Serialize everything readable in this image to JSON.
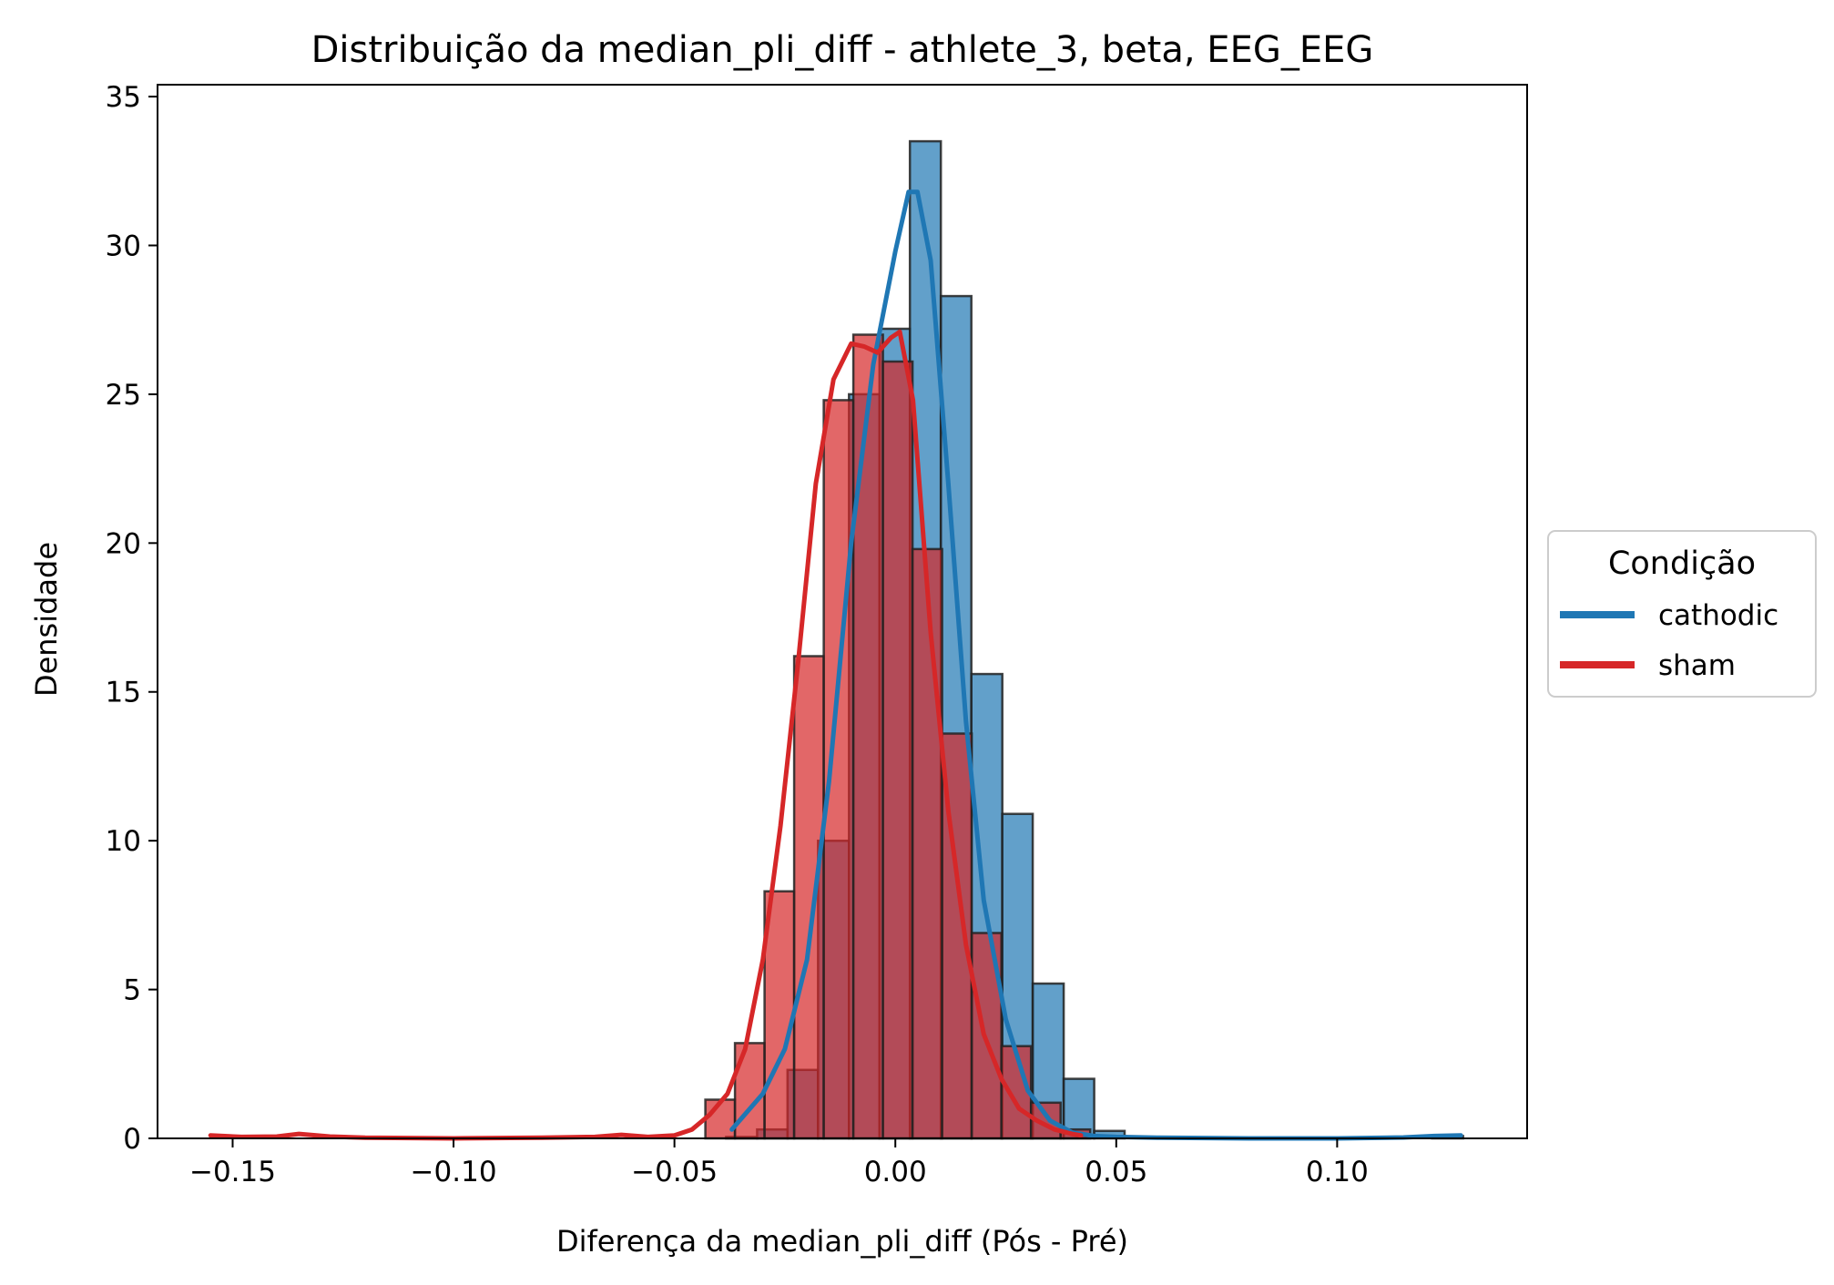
{
  "chart_data": {
    "type": "histogram",
    "title": "Distribuição da median_pli_diff - athlete_3, beta, EEG_EEG",
    "xlabel": "Diferença da median_pli_diff (Pós - Pré)",
    "ylabel": "Densidade",
    "xlim": [
      -0.167,
      0.143
    ],
    "ylim": [
      0,
      35.4
    ],
    "xticks": [
      -0.15,
      -0.1,
      -0.05,
      0.0,
      0.05,
      0.1
    ],
    "xtick_labels": [
      "−0.15",
      "−0.10",
      "−0.05",
      "0.00",
      "0.05",
      "0.10"
    ],
    "yticks": [
      0,
      5,
      10,
      15,
      20,
      25,
      30,
      35
    ],
    "ytick_labels": [
      "0",
      "5",
      "10",
      "15",
      "20",
      "25",
      "30",
      "35"
    ],
    "grid": false,
    "legend": {
      "title": "Condição",
      "position": "center-right, outside plot"
    },
    "series": [
      {
        "name": "cathodic",
        "color": "#1f77b4",
        "hist_bins": [
          {
            "x0": -0.0383,
            "x1": -0.0313,
            "y": 0.05
          },
          {
            "x0": -0.0313,
            "x1": -0.0244,
            "y": 0.3
          },
          {
            "x0": -0.0244,
            "x1": -0.0175,
            "y": 2.3
          },
          {
            "x0": -0.0175,
            "x1": -0.0105,
            "y": 10.0
          },
          {
            "x0": -0.0105,
            "x1": -0.0036,
            "y": 25.0
          },
          {
            "x0": -0.0036,
            "x1": 0.0033,
            "y": 27.2
          },
          {
            "x0": 0.0033,
            "x1": 0.0103,
            "y": 33.5
          },
          {
            "x0": 0.0103,
            "x1": 0.0172,
            "y": 28.3
          },
          {
            "x0": 0.0172,
            "x1": 0.0242,
            "y": 15.6
          },
          {
            "x0": 0.0242,
            "x1": 0.0311,
            "y": 10.9
          },
          {
            "x0": 0.0311,
            "x1": 0.0381,
            "y": 5.2
          },
          {
            "x0": 0.0381,
            "x1": 0.045,
            "y": 2.0
          },
          {
            "x0": 0.045,
            "x1": 0.0519,
            "y": 0.25
          },
          {
            "x0": 0.0519,
            "x1": 0.0589,
            "y": 0.0
          },
          {
            "x0": 0.1215,
            "x1": 0.1285,
            "y": 0.08
          }
        ],
        "kde_x": [
          -0.037,
          -0.03,
          -0.025,
          -0.02,
          -0.015,
          -0.01,
          -0.005,
          0.0,
          0.003,
          0.005,
          0.008,
          0.012,
          0.016,
          0.02,
          0.025,
          0.03,
          0.035,
          0.04,
          0.045,
          0.05,
          0.06,
          0.08,
          0.1,
          0.115,
          0.122,
          0.128
        ],
        "kde_y": [
          0.3,
          1.5,
          3.0,
          6.0,
          12.0,
          20.0,
          26.0,
          29.8,
          31.8,
          31.8,
          29.5,
          22.0,
          14.0,
          8.0,
          4.0,
          1.6,
          0.6,
          0.2,
          0.08,
          0.05,
          0.02,
          0.0,
          0.0,
          0.03,
          0.08,
          0.1
        ]
      },
      {
        "name": "sham",
        "color": "#d62728",
        "hist_bins": [
          {
            "x0": -0.043,
            "x1": -0.0363,
            "y": 1.3
          },
          {
            "x0": -0.0363,
            "x1": -0.0296,
            "y": 3.2
          },
          {
            "x0": -0.0296,
            "x1": -0.0229,
            "y": 8.3
          },
          {
            "x0": -0.0229,
            "x1": -0.0162,
            "y": 16.2
          },
          {
            "x0": -0.0162,
            "x1": -0.0095,
            "y": 24.8
          },
          {
            "x0": -0.0095,
            "x1": -0.0028,
            "y": 27.0
          },
          {
            "x0": -0.0028,
            "x1": 0.0039,
            "y": 26.1
          },
          {
            "x0": 0.0039,
            "x1": 0.0106,
            "y": 19.8
          },
          {
            "x0": 0.0106,
            "x1": 0.0173,
            "y": 13.6
          },
          {
            "x0": 0.0173,
            "x1": 0.024,
            "y": 6.9
          },
          {
            "x0": 0.024,
            "x1": 0.0307,
            "y": 3.1
          },
          {
            "x0": 0.0307,
            "x1": 0.0374,
            "y": 1.2
          },
          {
            "x0": 0.0374,
            "x1": 0.0441,
            "y": 0.3
          }
        ],
        "kde_x": [
          -0.155,
          -0.148,
          -0.14,
          -0.135,
          -0.128,
          -0.12,
          -0.1,
          -0.08,
          -0.068,
          -0.062,
          -0.056,
          -0.05,
          -0.046,
          -0.042,
          -0.038,
          -0.034,
          -0.03,
          -0.026,
          -0.022,
          -0.018,
          -0.014,
          -0.01,
          -0.007,
          -0.004,
          -0.001,
          0.001,
          0.004,
          0.008,
          0.012,
          0.016,
          0.02,
          0.024,
          0.028,
          0.032,
          0.036,
          0.04,
          0.042
        ],
        "kde_y": [
          0.1,
          0.05,
          0.06,
          0.15,
          0.06,
          0.02,
          0.0,
          0.02,
          0.05,
          0.12,
          0.05,
          0.1,
          0.3,
          0.8,
          1.5,
          3.0,
          6.0,
          10.5,
          16.0,
          22.0,
          25.5,
          26.7,
          26.6,
          26.4,
          26.9,
          27.1,
          24.8,
          17.0,
          11.0,
          6.5,
          3.5,
          2.0,
          1.0,
          0.6,
          0.3,
          0.15,
          0.1
        ]
      }
    ]
  }
}
